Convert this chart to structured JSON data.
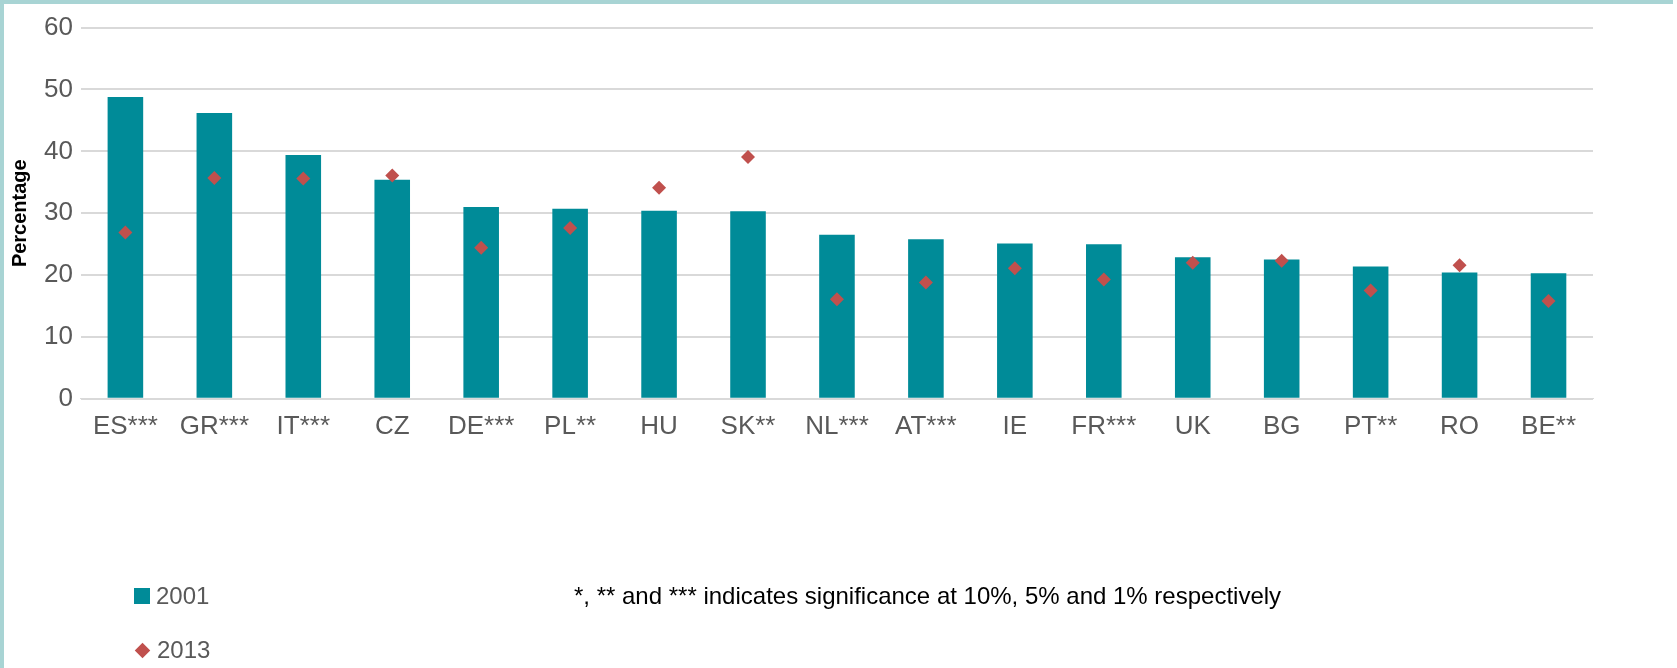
{
  "chart_data": {
    "type": "bar",
    "ylabel": "Percentage",
    "categories": [
      "ES***",
      "GR***",
      "IT***",
      "CZ",
      "DE***",
      "PL**",
      "HU",
      "SK**",
      "NL***",
      "AT***",
      "IE",
      "FR***",
      "UK",
      "BG",
      "PT**",
      "RO",
      "BE**"
    ],
    "series": [
      {
        "name": "2001",
        "type": "bar",
        "color": "#008b98",
        "values": [
          48.8,
          46.2,
          39.4,
          35.4,
          31.0,
          30.7,
          30.4,
          30.3,
          26.5,
          25.8,
          25.1,
          25.0,
          22.9,
          22.5,
          21.4,
          20.4,
          20.3
        ]
      },
      {
        "name": "2013",
        "type": "scatter",
        "color": "#c0504d",
        "marker": "diamond",
        "x": [
          "ES***",
          "GR***",
          "IT***",
          "CZ",
          "DE***",
          "PL**",
          "HU",
          "SK**",
          "NL***",
          "AT***",
          "IE",
          "FR***",
          "UK",
          "BG",
          "PT**",
          "RO",
          "BE**"
        ],
        "values": [
          26.9,
          35.7,
          35.6,
          36.1,
          24.4,
          27.6,
          34.1,
          39.1,
          16.1,
          18.8,
          21.1,
          19.3,
          22.0,
          22.3,
          17.5,
          21.6,
          15.8
        ]
      }
    ],
    "ylim": [
      0,
      60
    ],
    "yticks": [
      0,
      10,
      20,
      30,
      40,
      50,
      60
    ],
    "grid": "y",
    "legend": "bottom left",
    "annotations": [
      "*, ** and *** indicates significance at 10%, 5% and 1% respectively"
    ]
  }
}
